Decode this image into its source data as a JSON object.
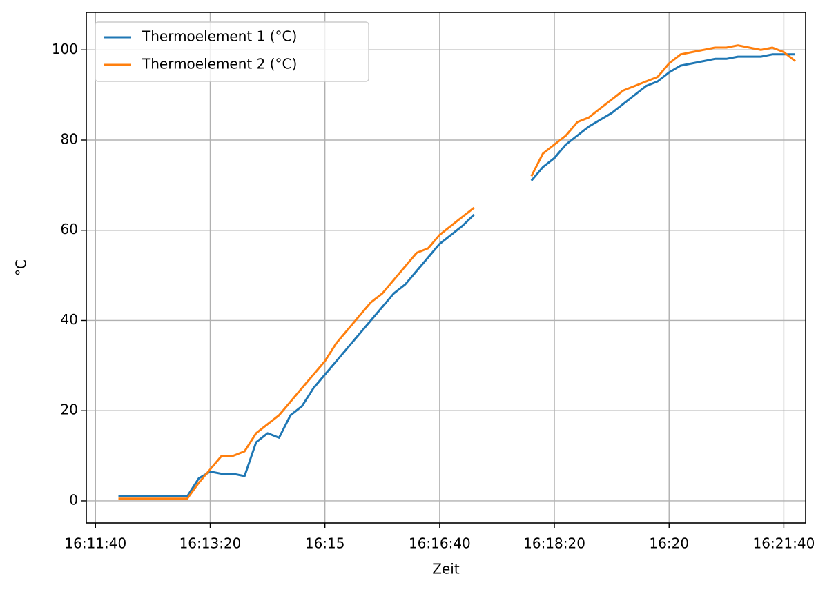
{
  "chart_data": {
    "type": "line",
    "xlabel": "Zeit",
    "ylabel": "°C",
    "x": [
      "16:12:00",
      "16:12:10",
      "16:12:20",
      "16:12:30",
      "16:12:40",
      "16:12:50",
      "16:13:00",
      "16:13:10",
      "16:13:20",
      "16:13:30",
      "16:13:40",
      "16:13:50",
      "16:14:00",
      "16:14:10",
      "16:14:20",
      "16:14:30",
      "16:14:40",
      "16:14:50",
      "16:15:00",
      "16:15:10",
      "16:15:20",
      "16:15:30",
      "16:15:40",
      "16:15:50",
      "16:16:00",
      "16:16:10",
      "16:16:20",
      "16:16:30",
      "16:16:40",
      "16:16:50",
      "16:17:00",
      "16:17:10",
      "16:17:20",
      "16:17:30",
      "16:17:40",
      "16:17:50",
      "16:18:00",
      "16:18:10",
      "16:18:20",
      "16:18:30",
      "16:18:40",
      "16:18:50",
      "16:19:00",
      "16:19:10",
      "16:19:20",
      "16:19:30",
      "16:19:40",
      "16:19:50",
      "16:20:00",
      "16:20:10",
      "16:20:20",
      "16:20:30",
      "16:20:40",
      "16:20:50",
      "16:21:00",
      "16:21:10",
      "16:21:20",
      "16:21:30",
      "16:21:40",
      "16:21:50"
    ],
    "series": [
      {
        "name": "Thermoelement 1 (°C)",
        "color": "#1f77b4",
        "values": [
          1,
          1,
          1,
          1,
          1,
          1,
          1,
          5,
          6.5,
          6,
          6,
          5.5,
          13,
          15,
          14,
          19,
          21,
          25,
          28,
          31,
          34,
          37,
          40,
          43,
          46,
          48,
          51,
          54,
          57,
          59,
          61,
          63.5,
          null,
          null,
          null,
          null,
          71,
          74,
          76,
          79,
          81,
          83,
          84.5,
          86,
          88,
          90,
          92,
          93,
          95,
          96.5,
          97,
          97.5,
          98,
          98,
          98.5,
          98.5,
          98.5,
          99,
          99,
          99
        ]
      },
      {
        "name": "Thermoelement 2 (°C)",
        "color": "#ff7f0e",
        "values": [
          0.5,
          0.5,
          0.5,
          0.5,
          0.5,
          0.5,
          0.5,
          4,
          7,
          10,
          10,
          11,
          15,
          17,
          19,
          22,
          25,
          28,
          31,
          35,
          38,
          41,
          44,
          46,
          49,
          52,
          55,
          56,
          59,
          61,
          63,
          65,
          null,
          null,
          null,
          null,
          72,
          77,
          79,
          81,
          84,
          85,
          87,
          89,
          91,
          92,
          93,
          94,
          97,
          99,
          99.5,
          100,
          100.5,
          100.5,
          101,
          100.5,
          100,
          100.5,
          99.5,
          97.5
        ]
      }
    ],
    "xlim": [
      "16:11:32",
      "16:21:59"
    ],
    "xticks": [
      "16:11:40",
      "16:13:20",
      {
        "value": "16:15:00",
        "label": "16:15"
      },
      "16:16:40",
      "16:18:20",
      {
        "value": "16:20:00",
        "label": "16:20"
      },
      "16:21:40"
    ],
    "ylim": [
      -4.9,
      108.3
    ],
    "yticks": [
      0,
      20,
      40,
      60,
      80,
      100
    ],
    "grid": true,
    "legend": "upper left"
  }
}
